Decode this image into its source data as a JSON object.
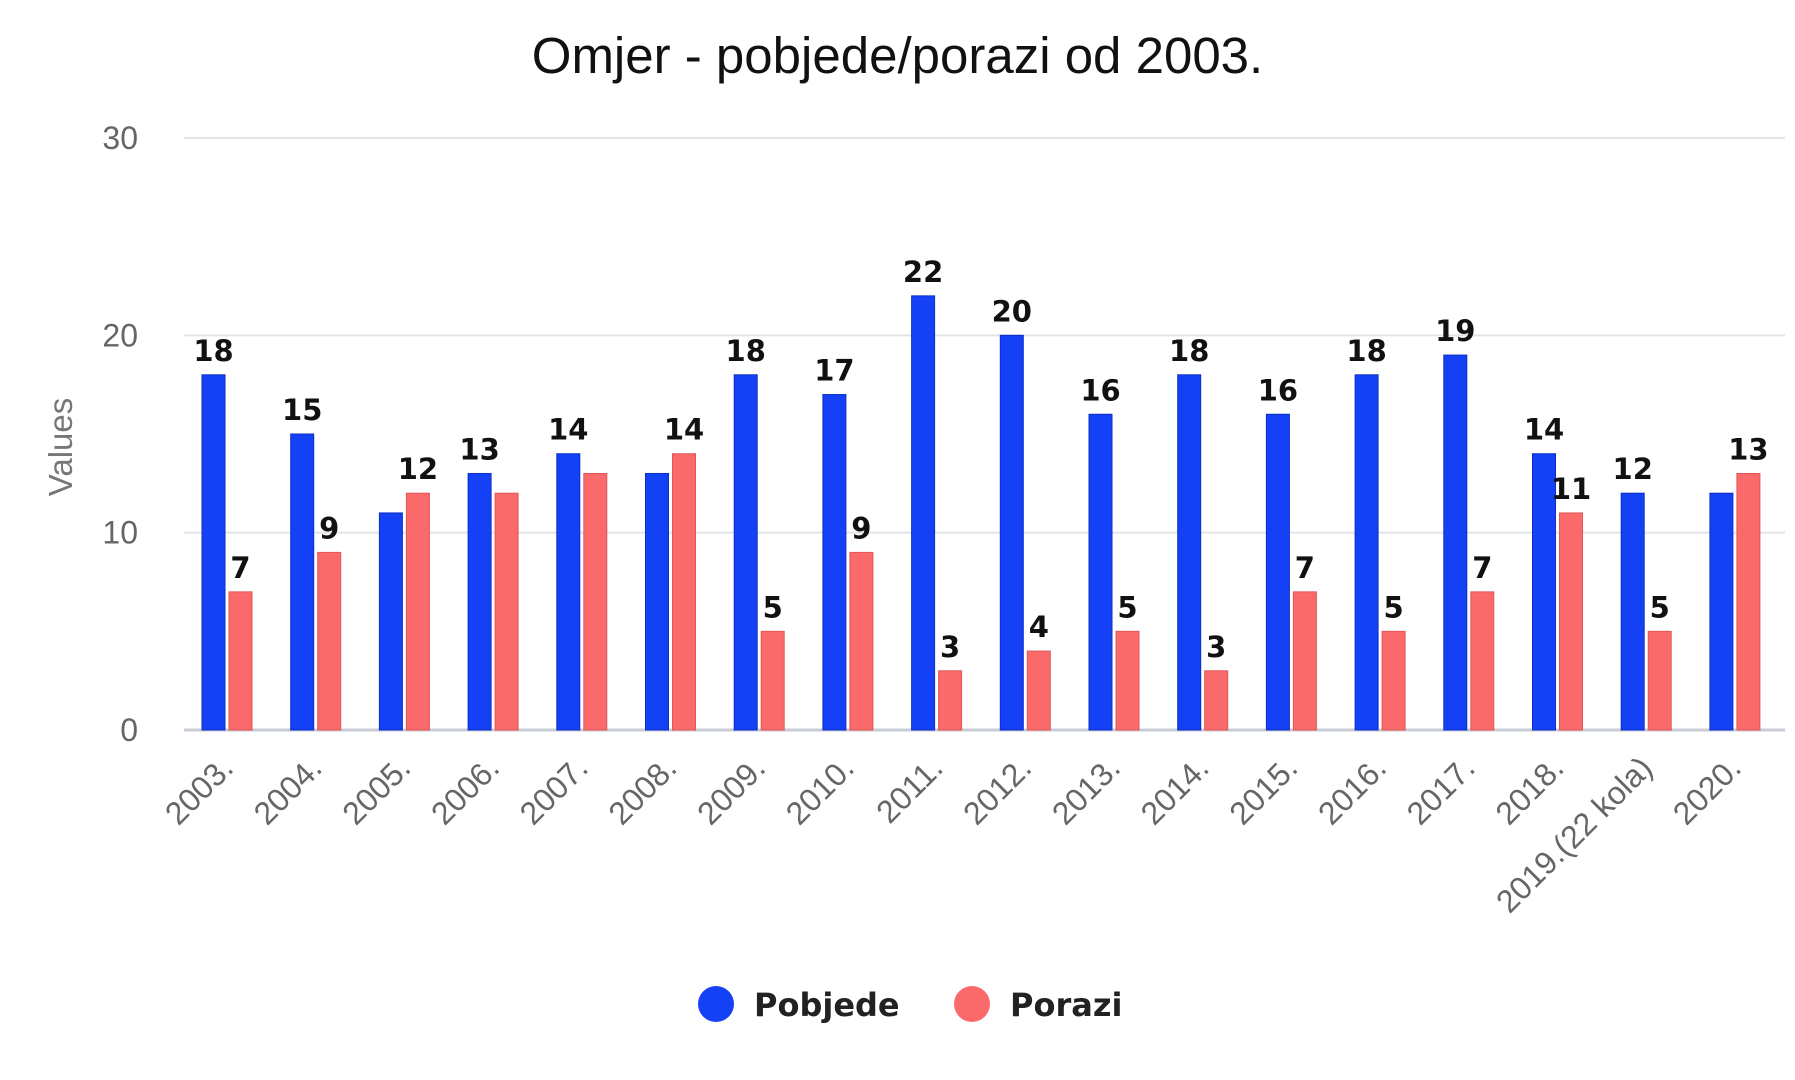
{
  "chart_data": {
    "type": "bar",
    "title": "Omjer - pobjede/porazi od 2003.",
    "xlabel": "",
    "ylabel": "Values",
    "ylim": [
      0,
      30
    ],
    "yticks": [
      "0",
      "10",
      "20",
      "30"
    ],
    "grid": true,
    "legend": "bottom",
    "categories": [
      "2003.",
      "2004.",
      "2005.",
      "2006.",
      "2007.",
      "2008.",
      "2009.",
      "2010.",
      "2011.",
      "2012.",
      "2013.",
      "2014.",
      "2015.",
      "2016.",
      "2017.",
      "2018.",
      "2019.(22 kola)",
      "2020."
    ],
    "series": [
      {
        "name": "Pobjede",
        "color": "#1441f5",
        "values": [
          18,
          15,
          11,
          13,
          14,
          13,
          18,
          17,
          22,
          20,
          16,
          18,
          16,
          18,
          19,
          14,
          12,
          12
        ],
        "labels": [
          "18",
          "15",
          "",
          "13",
          "14",
          "",
          "18",
          "17",
          "22",
          "20",
          "16",
          "18",
          "16",
          "18",
          "19",
          "14",
          "12",
          ""
        ]
      },
      {
        "name": "Porazi",
        "color": "#fb6a6a",
        "values": [
          7,
          9,
          12,
          12,
          13,
          14,
          5,
          9,
          3,
          4,
          5,
          3,
          7,
          5,
          7,
          11,
          5,
          13
        ],
        "labels": [
          "7",
          "9",
          "12",
          "",
          "",
          "14",
          "5",
          "9",
          "3",
          "4",
          "5",
          "3",
          "7",
          "5",
          "7",
          "11",
          "5",
          "13"
        ]
      }
    ]
  }
}
